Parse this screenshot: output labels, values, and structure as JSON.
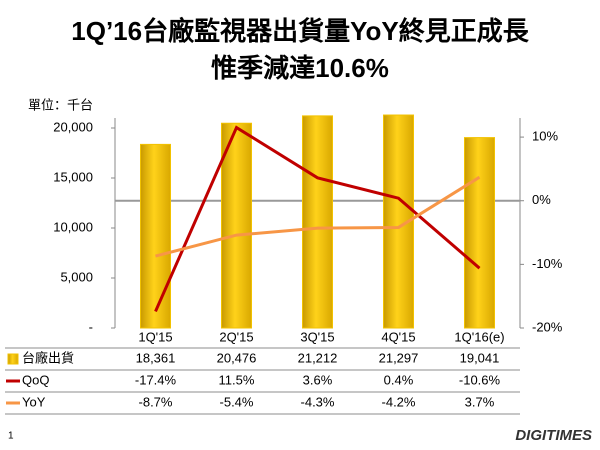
{
  "chart_data": {
    "type": "bar-line",
    "title": [
      "1Q’16台廠監視器出貨量YoY終見正成長",
      "惟季減達10.6%"
    ],
    "y_label": "單位：千台",
    "categories": [
      "1Q'15",
      "2Q'15",
      "3Q'15",
      "4Q'15",
      "1Q'16(e)"
    ],
    "series": [
      {
        "name": "台廠出貨",
        "color": "#f2c200",
        "values": [
          18361,
          20476,
          21212,
          21297,
          19041
        ],
        "value_labels": [
          "18,361",
          "20,476",
          "21,212",
          "21,297",
          "19,041"
        ]
      },
      {
        "name": "QoQ",
        "color": "#c00000",
        "axis": "y2",
        "values": [
          -17.4,
          11.5,
          3.6,
          0.4,
          -10.6
        ],
        "value_labels": [
          "-17.4%",
          "11.5%",
          "3.6%",
          "0.4%",
          "-10.6%"
        ]
      },
      {
        "name": "YoY",
        "color": "#f79646",
        "axis": "y2",
        "values": [
          -8.7,
          -5.4,
          -4.3,
          -4.2,
          3.7
        ],
        "value_labels": [
          "-8.7%",
          "-5.4%",
          "-4.3%",
          "-4.2%",
          "3.7%"
        ]
      }
    ],
    "ylim": [
      0,
      21000
    ],
    "yticks": [
      {
        "value": 0,
        "label": "-"
      },
      {
        "value": 5000,
        "label": "5,000"
      },
      {
        "value": 10000,
        "label": "10,000"
      },
      {
        "value": 15000,
        "label": "15,000"
      },
      {
        "value": 20000,
        "label": "20,000"
      }
    ],
    "y2lim": [
      -20,
      13
    ],
    "y2ticks": [
      {
        "value": -20,
        "label": "-20%"
      },
      {
        "value": -10,
        "label": "-10%"
      },
      {
        "value": 0,
        "label": "0%"
      },
      {
        "value": 10,
        "label": "10%"
      }
    ]
  },
  "footer": {
    "page_number": "1",
    "logo": "DIGITIMES"
  }
}
